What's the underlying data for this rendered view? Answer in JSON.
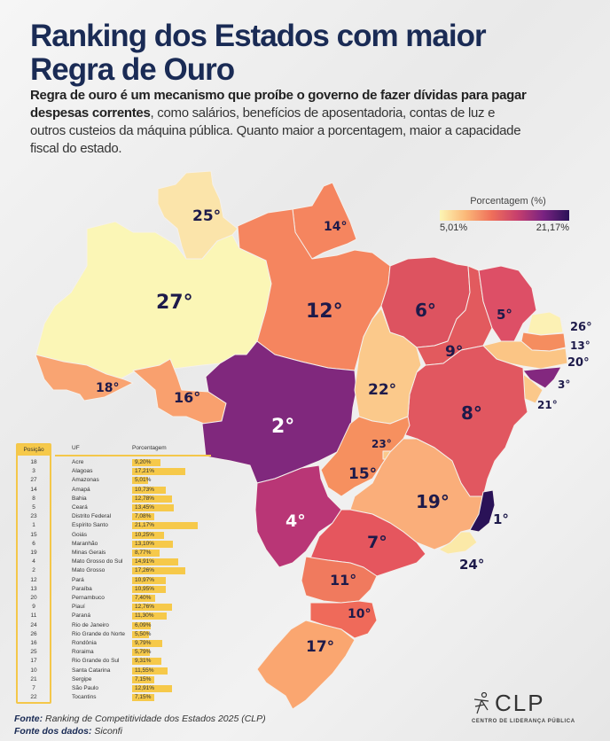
{
  "title": "Ranking dos Estados com maior Regra de Ouro",
  "description": {
    "bold": "Regra de ouro é um mecanismo que proíbe o governo de fazer dívidas para pagar despesas correntes",
    "rest": ", como salários, benefícios de aposentadoria, contas de luz e outros custeios da máquina pública. Quanto maior a porcentagem, maior a capacidade fiscal do estado."
  },
  "legend": {
    "title": "Porcentagem (%)",
    "min_label": "5,01%",
    "max_label": "21,17%",
    "min_value": 5.01,
    "max_value": 21.17,
    "colors": [
      "#fcf5b4",
      "#fbb878",
      "#ef6f5a",
      "#c73f6d",
      "#7a2382",
      "#2a1257"
    ]
  },
  "map_labels": {
    "RR": "25°",
    "AM": "27°",
    "AP": "14°",
    "PA": "12°",
    "AC": "18°",
    "RO": "16°",
    "MT": "2°",
    "MA": "6°",
    "PI": "9°",
    "CE": "5°",
    "RN": "26°",
    "PB": "13°",
    "PE": "20°",
    "AL": "3°",
    "SE": "21°",
    "BA": "8°",
    "TO": "22°",
    "DF": "23°",
    "GO": "15°",
    "MG": "19°",
    "ES": "1°",
    "RJ": "24°",
    "MS": "4°",
    "SP": "7°",
    "PR": "11°",
    "SC": "10°",
    "RS": "17°"
  },
  "table": {
    "headers": {
      "position": "Posição",
      "uf": "UF",
      "percent": "Porcentagem"
    },
    "rows": [
      {
        "pos": "18",
        "uf": "Acre",
        "pct": "9,20%",
        "value": 9.2
      },
      {
        "pos": "3",
        "uf": "Alagoas",
        "pct": "17,21%",
        "value": 17.21
      },
      {
        "pos": "27",
        "uf": "Amazonas",
        "pct": "5,01%",
        "value": 5.01
      },
      {
        "pos": "14",
        "uf": "Amapá",
        "pct": "10,73%",
        "value": 10.73
      },
      {
        "pos": "8",
        "uf": "Bahia",
        "pct": "12,78%",
        "value": 12.78
      },
      {
        "pos": "5",
        "uf": "Ceará",
        "pct": "13,45%",
        "value": 13.45
      },
      {
        "pos": "23",
        "uf": "Distrito Federal",
        "pct": "7,08%",
        "value": 7.08
      },
      {
        "pos": "1",
        "uf": "Espírito Santo",
        "pct": "21,17%",
        "value": 21.17
      },
      {
        "pos": "15",
        "uf": "Goiás",
        "pct": "10,25%",
        "value": 10.25
      },
      {
        "pos": "6",
        "uf": "Maranhão",
        "pct": "13,10%",
        "value": 13.1
      },
      {
        "pos": "19",
        "uf": "Minas Gerais",
        "pct": "8,77%",
        "value": 8.77
      },
      {
        "pos": "4",
        "uf": "Mato Grosso do Sul",
        "pct": "14,91%",
        "value": 14.91
      },
      {
        "pos": "2",
        "uf": "Mato Grosso",
        "pct": "17,26%",
        "value": 17.26
      },
      {
        "pos": "12",
        "uf": "Pará",
        "pct": "10,97%",
        "value": 10.97
      },
      {
        "pos": "13",
        "uf": "Paraíba",
        "pct": "10,95%",
        "value": 10.95
      },
      {
        "pos": "20",
        "uf": "Pernambuco",
        "pct": "7,40%",
        "value": 7.4
      },
      {
        "pos": "9",
        "uf": "Piauí",
        "pct": "12,76%",
        "value": 12.76
      },
      {
        "pos": "11",
        "uf": "Paraná",
        "pct": "11,30%",
        "value": 11.3
      },
      {
        "pos": "24",
        "uf": "Rio de Janeiro",
        "pct": "6,09%",
        "value": 6.09
      },
      {
        "pos": "26",
        "uf": "Rio Grande do Norte",
        "pct": "5,50%",
        "value": 5.5
      },
      {
        "pos": "16",
        "uf": "Rondônia",
        "pct": "9,79%",
        "value": 9.79
      },
      {
        "pos": "25",
        "uf": "Roraima",
        "pct": "5,79%",
        "value": 5.79
      },
      {
        "pos": "17",
        "uf": "Rio Grande do Sul",
        "pct": "9,31%",
        "value": 9.31
      },
      {
        "pos": "10",
        "uf": "Santa Catarina",
        "pct": "11,55%",
        "value": 11.55
      },
      {
        "pos": "21",
        "uf": "Sergipe",
        "pct": "7,15%",
        "value": 7.15
      },
      {
        "pos": "7",
        "uf": "São Paulo",
        "pct": "12,91%",
        "value": 12.91
      },
      {
        "pos": "22",
        "uf": "Tocantins",
        "pct": "7,15%",
        "value": 7.15
      }
    ]
  },
  "footer": {
    "source_label": "Fonte:",
    "source_text": "Ranking de Competitividade dos Estados 2025 (CLP)",
    "data_label": "Fonte dos dados:",
    "data_text": "Siconfi"
  },
  "logo": {
    "name": "CLP",
    "subtitle": "CENTRO DE LIDERANÇA PÚBLICA"
  }
}
